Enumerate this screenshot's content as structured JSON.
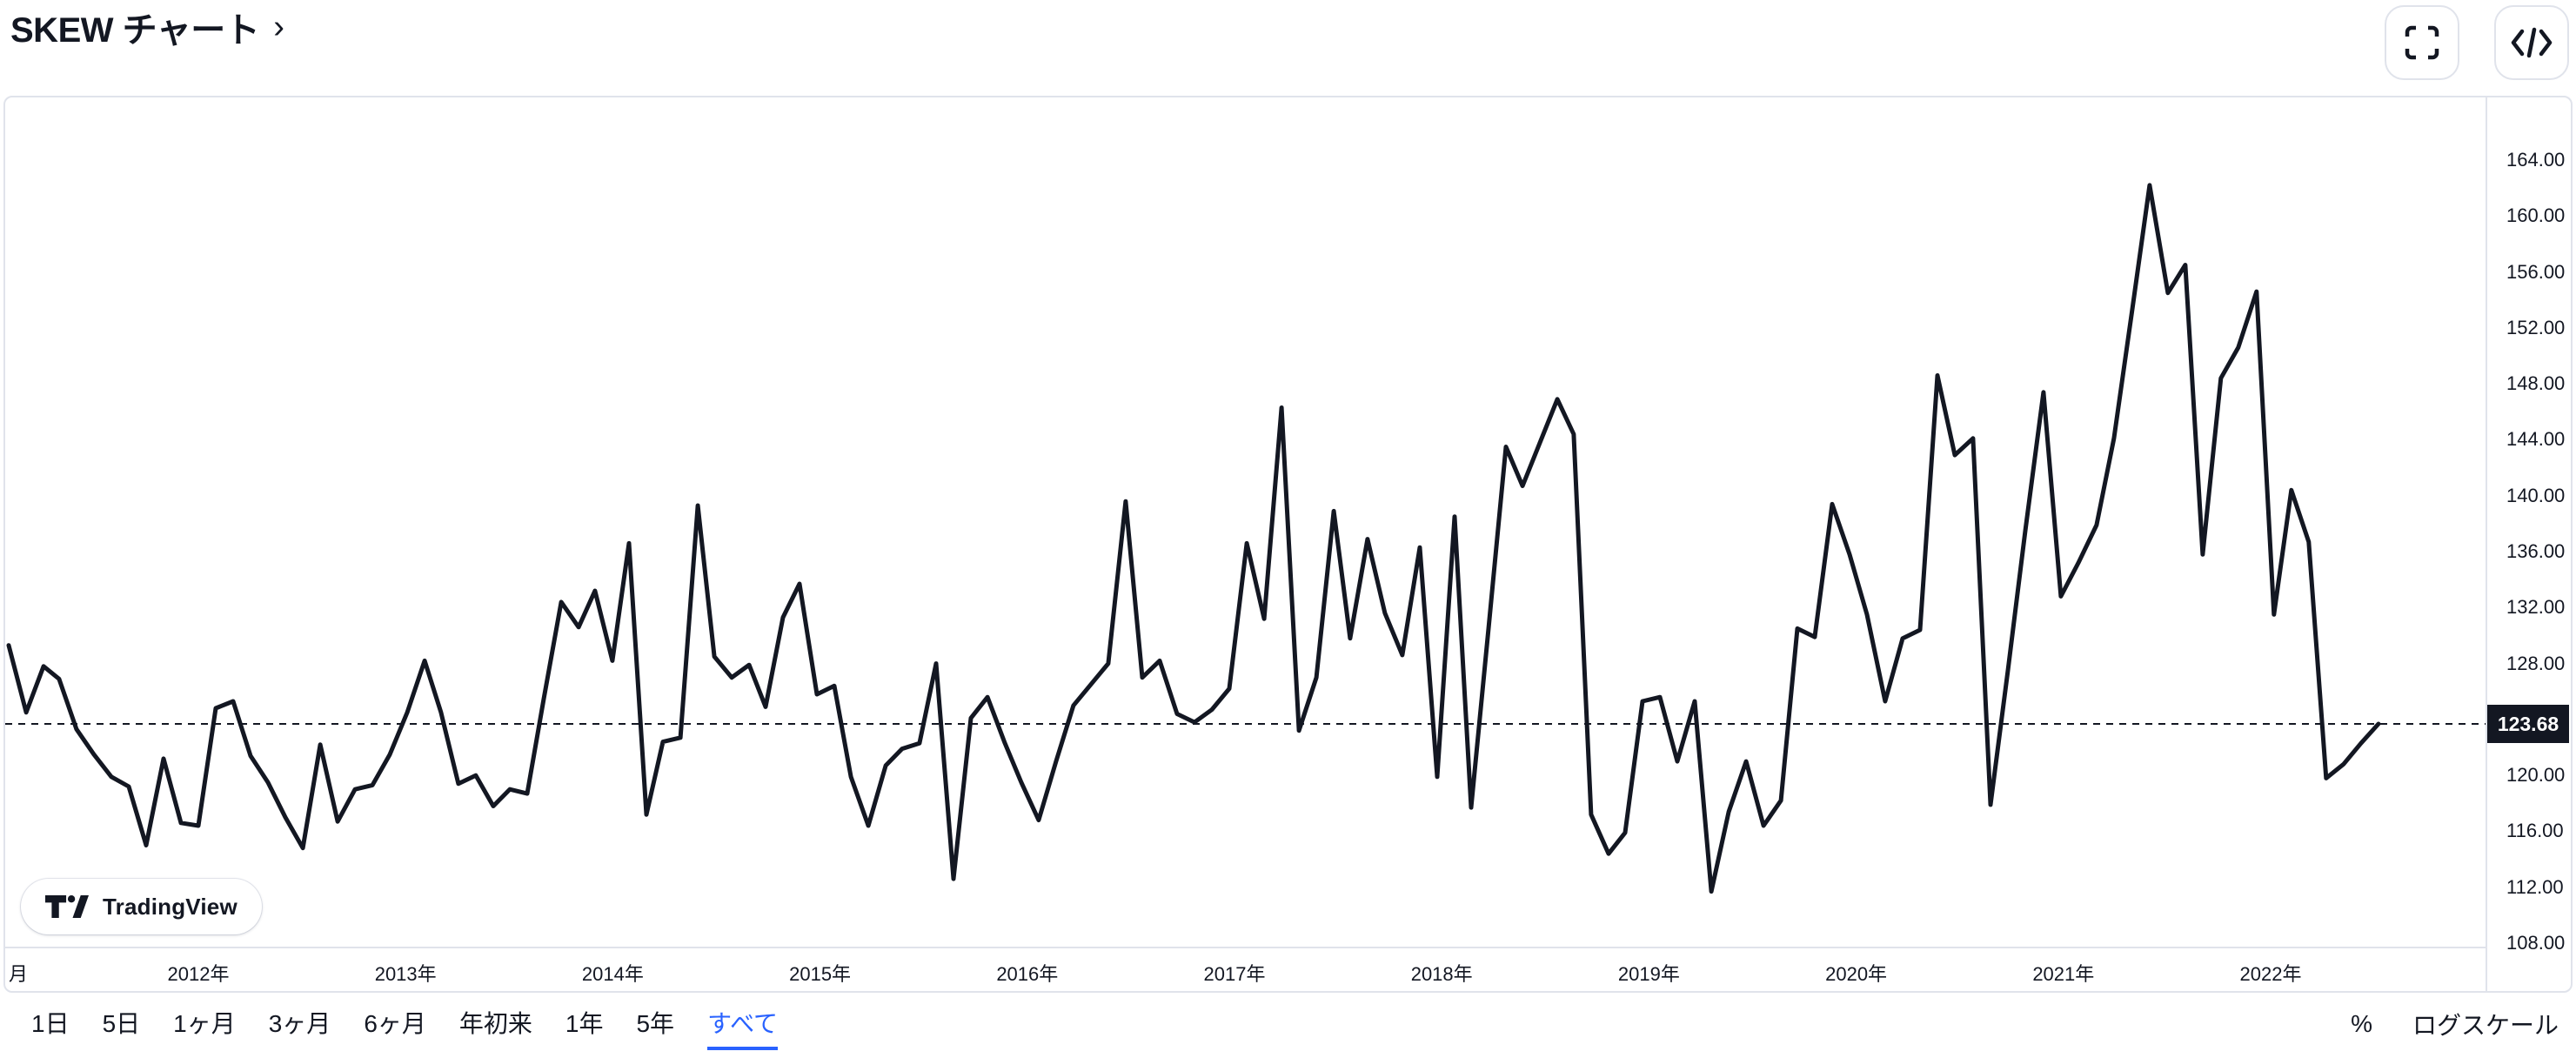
{
  "header": {
    "title": "SKEW チャート",
    "link_chevron": "›"
  },
  "header_buttons": {
    "fullscreen": "fullscreen",
    "embed_code": "embed-code"
  },
  "attribution": {
    "text": "TradingView"
  },
  "scale_controls": {
    "percent_label": "%",
    "log_label": "ログスケール"
  },
  "range_toolbar": {
    "selected_key": "all",
    "items": [
      {
        "key": "1d",
        "label": "1日"
      },
      {
        "key": "5d",
        "label": "5日"
      },
      {
        "key": "1m",
        "label": "1ヶ月"
      },
      {
        "key": "3m",
        "label": "3ヶ月"
      },
      {
        "key": "6m",
        "label": "6ヶ月"
      },
      {
        "key": "ytd",
        "label": "年初来"
      },
      {
        "key": "1y",
        "label": "1年"
      },
      {
        "key": "5y",
        "label": "5年"
      },
      {
        "key": "all",
        "label": "すべて"
      }
    ]
  },
  "colors": {
    "text": "#131722",
    "line": "#131722",
    "border": "#E0E3EB",
    "accent_blue": "#2962FF",
    "price_label_bg": "#131722",
    "price_label_text": "#FFFFFF"
  },
  "chart_data": {
    "type": "line",
    "title": "SKEW チャート",
    "symbol": "SKEW",
    "grid": false,
    "legend_position": "none",
    "x_unit": "decimal_year",
    "ylabel": "",
    "xlabel": "",
    "ylim": [
      107.5,
      168.5
    ],
    "last_value": 123.68,
    "price_label": "123.68",
    "reference_line": {
      "value": 123.68,
      "style": "dashed"
    },
    "y_axis": {
      "ticks": [
        164,
        160,
        156,
        152,
        148,
        144,
        140,
        136,
        132,
        128,
        120,
        116,
        112,
        108
      ],
      "tick_labels": [
        "164.00",
        "160.00",
        "156.00",
        "152.00",
        "148.00",
        "144.00",
        "140.00",
        "136.00",
        "132.00",
        "128.00",
        "120.00",
        "116.00",
        "112.00",
        "108.00"
      ]
    },
    "x_axis": {
      "ticks": [
        2012,
        2013,
        2014,
        2015,
        2016,
        2017,
        2018,
        2019,
        2020,
        2021,
        2022
      ],
      "tick_labels": [
        "2012年",
        "2013年",
        "2014年",
        "2015年",
        "2016年",
        "2017年",
        "2018年",
        "2019年",
        "2020年",
        "2021年",
        "2022年"
      ],
      "partial_left_label": "月"
    },
    "points": [
      [
        2011.085,
        129.3
      ],
      [
        2011.169,
        124.5
      ],
      [
        2011.253,
        127.8
      ],
      [
        2011.328,
        126.9
      ],
      [
        2011.412,
        123.3
      ],
      [
        2011.496,
        121.5
      ],
      [
        2011.58,
        119.9
      ],
      [
        2011.664,
        119.2
      ],
      [
        2011.748,
        115.0
      ],
      [
        2011.832,
        121.2
      ],
      [
        2011.916,
        116.6
      ],
      [
        2012.0,
        116.4
      ],
      [
        2012.084,
        124.8
      ],
      [
        2012.168,
        125.3
      ],
      [
        2012.252,
        121.4
      ],
      [
        2012.336,
        119.5
      ],
      [
        2012.42,
        117.0
      ],
      [
        2012.504,
        114.8
      ],
      [
        2012.588,
        122.2
      ],
      [
        2012.672,
        116.7
      ],
      [
        2012.756,
        119.0
      ],
      [
        2012.84,
        119.3
      ],
      [
        2012.924,
        121.5
      ],
      [
        2013.008,
        124.5
      ],
      [
        2013.092,
        128.2
      ],
      [
        2013.171,
        124.5
      ],
      [
        2013.255,
        119.4
      ],
      [
        2013.339,
        120.0
      ],
      [
        2013.423,
        117.8
      ],
      [
        2013.503,
        119.0
      ],
      [
        2013.587,
        118.7
      ],
      [
        2013.667,
        125.5
      ],
      [
        2013.751,
        132.4
      ],
      [
        2013.835,
        130.6
      ],
      [
        2013.914,
        133.2
      ],
      [
        2013.998,
        128.2
      ],
      [
        2014.078,
        136.6
      ],
      [
        2014.162,
        117.2
      ],
      [
        2014.242,
        122.4
      ],
      [
        2014.326,
        122.7
      ],
      [
        2014.41,
        139.3
      ],
      [
        2014.49,
        128.5
      ],
      [
        2014.574,
        127.0
      ],
      [
        2014.658,
        127.9
      ],
      [
        2014.737,
        124.9
      ],
      [
        2014.821,
        131.3
      ],
      [
        2014.901,
        133.7
      ],
      [
        2014.985,
        125.8
      ],
      [
        2015.069,
        126.4
      ],
      [
        2015.149,
        119.9
      ],
      [
        2015.233,
        116.4
      ],
      [
        2015.317,
        120.7
      ],
      [
        2015.396,
        121.9
      ],
      [
        2015.48,
        122.3
      ],
      [
        2015.56,
        128.0
      ],
      [
        2015.644,
        112.6
      ],
      [
        2015.728,
        124.1
      ],
      [
        2015.808,
        125.6
      ],
      [
        2015.892,
        122.3
      ],
      [
        2015.971,
        119.5
      ],
      [
        2016.055,
        116.8
      ],
      [
        2016.139,
        121.0
      ],
      [
        2016.223,
        125.0
      ],
      [
        2016.307,
        126.5
      ],
      [
        2016.391,
        128.0
      ],
      [
        2016.475,
        139.6
      ],
      [
        2016.555,
        127.0
      ],
      [
        2016.639,
        128.2
      ],
      [
        2016.723,
        124.4
      ],
      [
        2016.807,
        123.8
      ],
      [
        2016.891,
        124.7
      ],
      [
        2016.975,
        126.2
      ],
      [
        2017.059,
        136.6
      ],
      [
        2017.143,
        131.2
      ],
      [
        2017.227,
        146.3
      ],
      [
        2017.311,
        123.2
      ],
      [
        2017.395,
        127.0
      ],
      [
        2017.479,
        138.9
      ],
      [
        2017.558,
        129.8
      ],
      [
        2017.642,
        136.9
      ],
      [
        2017.726,
        131.6
      ],
      [
        2017.81,
        128.6
      ],
      [
        2017.894,
        136.3
      ],
      [
        2017.978,
        119.9
      ],
      [
        2018.062,
        138.5
      ],
      [
        2018.142,
        117.7
      ],
      [
        2018.226,
        130.5
      ],
      [
        2018.31,
        143.5
      ],
      [
        2018.39,
        140.7
      ],
      [
        2018.474,
        143.8
      ],
      [
        2018.558,
        146.9
      ],
      [
        2018.637,
        144.4
      ],
      [
        2018.721,
        117.2
      ],
      [
        2018.805,
        114.4
      ],
      [
        2018.885,
        115.9
      ],
      [
        2018.969,
        125.3
      ],
      [
        2019.053,
        125.6
      ],
      [
        2019.137,
        121.0
      ],
      [
        2019.221,
        125.3
      ],
      [
        2019.301,
        111.7
      ],
      [
        2019.385,
        117.4
      ],
      [
        2019.469,
        121.0
      ],
      [
        2019.553,
        116.4
      ],
      [
        2019.637,
        118.2
      ],
      [
        2019.716,
        130.5
      ],
      [
        2019.8,
        129.9
      ],
      [
        2019.884,
        139.4
      ],
      [
        2019.968,
        135.8
      ],
      [
        2020.052,
        131.5
      ],
      [
        2020.14,
        125.3
      ],
      [
        2020.224,
        129.8
      ],
      [
        2020.308,
        130.4
      ],
      [
        2020.392,
        148.6
      ],
      [
        2020.476,
        142.9
      ],
      [
        2020.564,
        144.1
      ],
      [
        2020.648,
        117.9
      ],
      [
        2020.732,
        127.5
      ],
      [
        2020.816,
        137.5
      ],
      [
        2020.904,
        147.4
      ],
      [
        2020.988,
        132.8
      ],
      [
        2021.072,
        135.2
      ],
      [
        2021.16,
        137.9
      ],
      [
        2021.244,
        144.1
      ],
      [
        2021.332,
        153.3
      ],
      [
        2021.416,
        162.2
      ],
      [
        2021.504,
        154.5
      ],
      [
        2021.588,
        156.5
      ],
      [
        2021.672,
        135.8
      ],
      [
        2021.76,
        148.4
      ],
      [
        2021.844,
        150.6
      ],
      [
        2021.932,
        154.6
      ],
      [
        2022.016,
        131.5
      ],
      [
        2022.1,
        140.4
      ],
      [
        2022.184,
        136.7
      ],
      [
        2022.268,
        119.8
      ],
      [
        2022.352,
        120.8
      ],
      [
        2022.436,
        122.3
      ],
      [
        2022.52,
        123.68
      ]
    ]
  }
}
